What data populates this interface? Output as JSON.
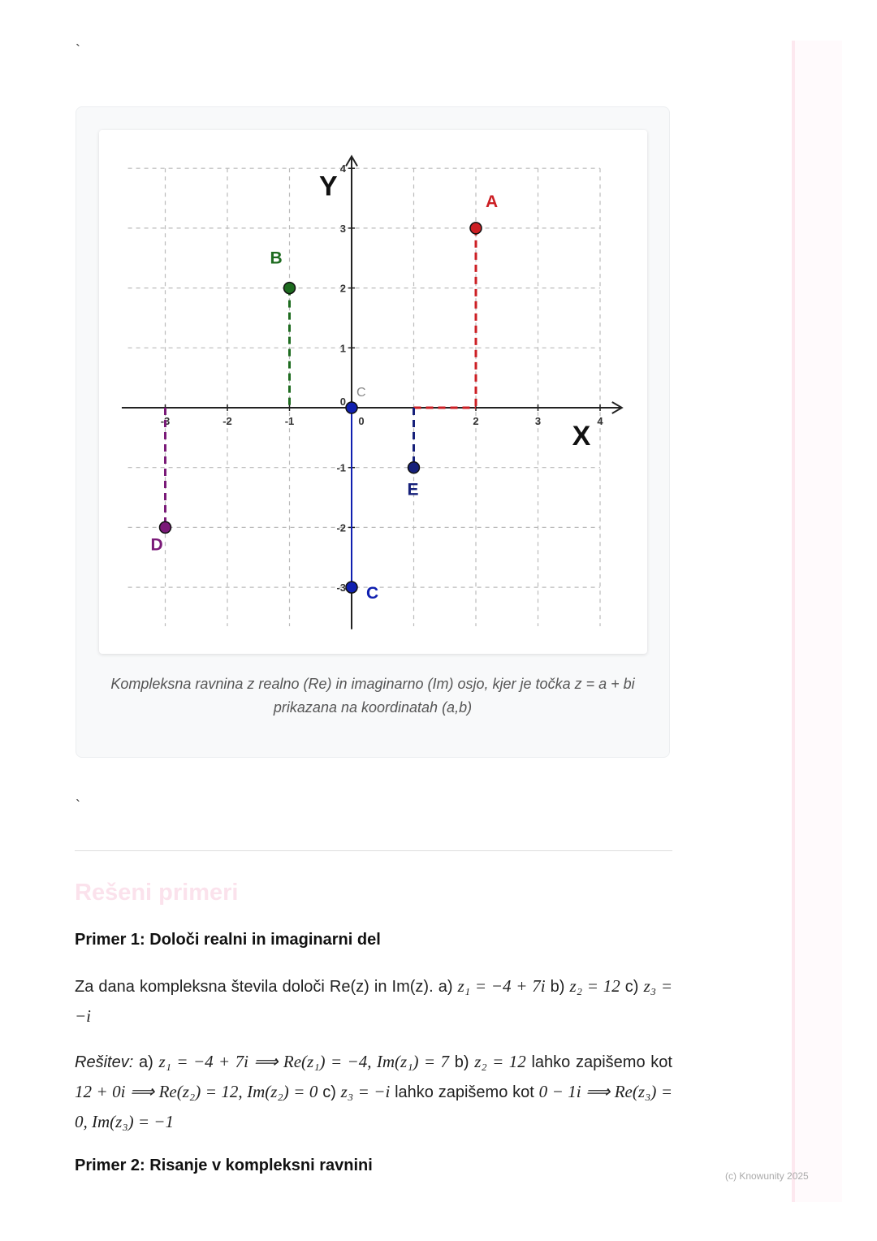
{
  "backtick_top": "`",
  "backtick_bottom": "`",
  "figure": {
    "caption": "Kompleksna ravnina z realno (Re) in imaginarno (Im) osjo, kjer je točka z = a + bi prikazana na koordinatah (a,b)"
  },
  "chart_data": {
    "type": "scatter",
    "xlabel": "X",
    "ylabel": "Y",
    "xlim": [
      -3.6,
      4.3
    ],
    "ylim": [
      -3.7,
      4.2
    ],
    "grid": true,
    "x_ticks": [
      "-3",
      "-2",
      "-1",
      "0",
      "2",
      "3",
      "4"
    ],
    "x_tick_values": [
      -3,
      -2,
      -1,
      0,
      2,
      3,
      4
    ],
    "y_ticks": [
      "4",
      "3",
      "2",
      "1",
      "0",
      "-1",
      "-2",
      "-3"
    ],
    "y_tick_values": [
      4,
      3,
      2,
      1,
      0,
      -1,
      -2,
      -3
    ],
    "points": [
      {
        "label": "A",
        "x": 2,
        "y": 3,
        "color": "#cc1f24"
      },
      {
        "label": "B",
        "x": -1,
        "y": 2,
        "color": "#1d6b1f"
      },
      {
        "label": "C",
        "x": 0,
        "y": 0,
        "color": "#1020b0",
        "label_color": "#888888"
      },
      {
        "label": "C",
        "x": 0,
        "y": -3,
        "color": "#1020b0"
      },
      {
        "label": "D",
        "x": -3,
        "y": -2,
        "color": "#7a1a78"
      },
      {
        "label": "E",
        "x": 1,
        "y": -1,
        "color": "#16207a"
      }
    ]
  },
  "section_title": "Rešeni primeri",
  "example1": {
    "title": "Primer 1: Določi realni in imaginarni del",
    "task": {
      "t1": "Za dana kompleksna števila določi Re(z) in Im(z). a) ",
      "m1": "z₁ = −4 + 7i",
      "t2": " b) ",
      "m2": "z₂ = 12",
      "t3": " c) ",
      "m3": "z₃ = −i"
    },
    "solution": {
      "label": "Rešitev:",
      "t1": " a) ",
      "m1": "z₁ = −4 + 7i  ⟹  Re(z₁) = −4, Im(z₁) = 7",
      "t2": " b) ",
      "m2": "z₂ = 12",
      "t3": " lahko zapišemo kot ",
      "m3": "12 + 0i  ⟹  Re(z₂) = 12, Im(z₂) = 0",
      "t4": "  c) ",
      "m4": "z₃ = −i",
      "t5": " lahko zapišemo kot ",
      "m5": "0 − 1i  ⟹  Re(z₃) = 0, Im(z₃) = −1"
    }
  },
  "example2": {
    "title": "Primer 2: Risanje v kompleksni ravnini"
  },
  "footer": {
    "copyright": "(c) Knowunity 2025"
  }
}
